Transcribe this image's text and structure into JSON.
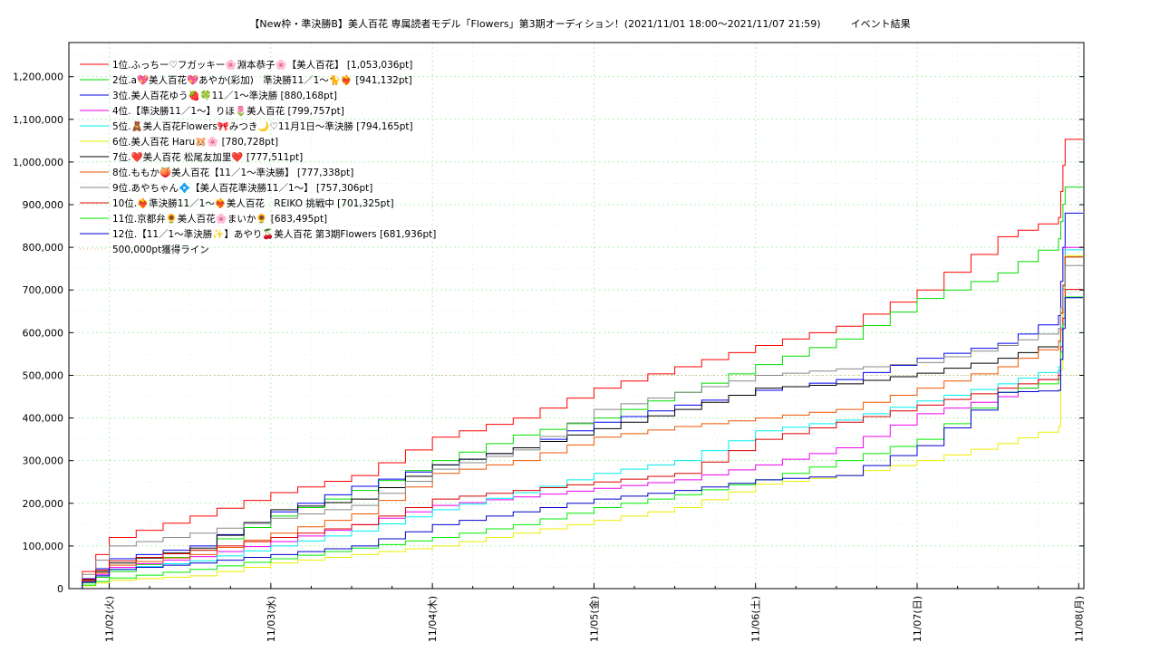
{
  "chart_data": {
    "type": "line",
    "title": "【New枠・準決勝B】美人百花 専属読者モデル「Flowers」第3期オーディション！(2021/11/01 18:00〜2021/11/07 21:59)　　　イベント結果",
    "xlabel": "",
    "ylabel": "",
    "x_ticks": [
      "11/02(火)",
      "11/03(水)",
      "11/04(木)",
      "11/05(金)",
      "11/06(土)",
      "11/07(日)",
      "11/08(月)"
    ],
    "y_ticks": [
      "0",
      "100,000",
      "200,000",
      "300,000",
      "400,000",
      "500,000",
      "600,000",
      "700,000",
      "800,000",
      "900,000",
      "1,000,000",
      "1,100,000",
      "1,200,000"
    ],
    "ylim": [
      0,
      1280000
    ],
    "grid": true,
    "legend_position": "top-left",
    "reference_line": {
      "name": "500,000pt獲得ライン",
      "value": 500000,
      "color": "#e8a87c"
    },
    "x": [
      "11/01 18:00",
      "11/02 00:00",
      "11/02 12:00",
      "11/03 00:00",
      "11/03 12:00",
      "11/04 00:00",
      "11/04 12:00",
      "11/05 00:00",
      "11/05 12:00",
      "11/06 00:00",
      "11/06 12:00",
      "11/07 00:00",
      "11/07 12:00",
      "11/07 21:00",
      "11/07 21:59"
    ],
    "series": [
      {
        "name": "1位.ふっちー♡フガッキー🌸淵本恭子🌸【美人百花】 [1,053,036pt]",
        "color": "#ff0000",
        "values": [
          0,
          120000,
          170000,
          225000,
          265000,
          355000,
          400000,
          470000,
          520000,
          570000,
          615000,
          700000,
          825000,
          870000,
          1053036
        ]
      },
      {
        "name": "2位.a💖美人百花💖あやか(彩加)　準決勝11／1〜🐈❤️‍🔥 [941,132pt]",
        "color": "#00dd00",
        "values": [
          0,
          40000,
          90000,
          170000,
          230000,
          300000,
          360000,
          400000,
          460000,
          525000,
          585000,
          680000,
          740000,
          820000,
          941132
        ]
      },
      {
        "name": "3位.美人百花ゆう🍓🍀11／1〜準決勝 [880,168pt]",
        "color": "#0000ee",
        "values": [
          0,
          70000,
          100000,
          180000,
          240000,
          290000,
          330000,
          390000,
          430000,
          465000,
          490000,
          540000,
          575000,
          640000,
          880168
        ]
      },
      {
        "name": "4位.【準決勝11／1〜】りほ🌷美人百花 [799,757pt]",
        "color": "#ee00ee",
        "values": [
          0,
          50000,
          75000,
          110000,
          150000,
          195000,
          215000,
          235000,
          255000,
          290000,
          330000,
          410000,
          450000,
          510000,
          799757
        ]
      },
      {
        "name": "5位.🧸美人百花Flowers🎀みつき🌙♡11月1日〜準決勝 [794,165pt]",
        "color": "#00eeee",
        "values": [
          0,
          45000,
          65000,
          100000,
          135000,
          185000,
          225000,
          270000,
          300000,
          370000,
          395000,
          440000,
          480000,
          520000,
          794165
        ]
      },
      {
        "name": "6位.美人百花 Haru🐹🌸 [780,728pt]",
        "color": "#eeee00",
        "values": [
          0,
          20000,
          30000,
          60000,
          80000,
          100000,
          130000,
          160000,
          190000,
          245000,
          265000,
          300000,
          340000,
          380000,
          780728
        ]
      },
      {
        "name": "7位.❤️美人百花 松尾友加里❤️ [777,511pt]",
        "color": "#000000",
        "values": [
          0,
          60000,
          95000,
          185000,
          210000,
          290000,
          330000,
          375000,
          420000,
          470000,
          480000,
          505000,
          540000,
          580000,
          777511
        ]
      },
      {
        "name": "8位.ももか🍑美人百花【11／1〜準決勝】 [777,338pt]",
        "color": "#ee5500",
        "values": [
          0,
          55000,
          80000,
          130000,
          175000,
          270000,
          300000,
          355000,
          380000,
          400000,
          420000,
          470000,
          520000,
          580000,
          777338
        ]
      },
      {
        "name": "9位.あやちゃん💠【美人百花準決勝11／1〜】 [757,306pt]",
        "color": "#888888",
        "values": [
          0,
          100000,
          130000,
          165000,
          195000,
          280000,
          325000,
          420000,
          460000,
          500000,
          515000,
          530000,
          570000,
          610000,
          757306
        ]
      },
      {
        "name": "10位.❤️‍🔥準決勝11／1〜❤️‍🔥美人百花　REIKO 挑戦中 [701,325pt]",
        "color": "#dd0000",
        "values": [
          0,
          65000,
          90000,
          120000,
          150000,
          210000,
          230000,
          250000,
          270000,
          350000,
          390000,
          430000,
          470000,
          500000,
          701325
        ]
      },
      {
        "name": "11位.京都弁🌻美人百花🌸まいか🌻 [683,495pt]",
        "color": "#00ee00",
        "values": [
          0,
          25000,
          45000,
          70000,
          95000,
          120000,
          150000,
          190000,
          220000,
          255000,
          300000,
          350000,
          460000,
          490000,
          683495
        ]
      },
      {
        "name": "12位.【11／1〜準決勝✨】あやり🍒美人百花 第3期Flowers [681,936pt]",
        "color": "#0000cc",
        "values": [
          0,
          45000,
          60000,
          80000,
          100000,
          150000,
          180000,
          210000,
          230000,
          255000,
          265000,
          335000,
          460000,
          465000,
          681936
        ]
      }
    ]
  }
}
